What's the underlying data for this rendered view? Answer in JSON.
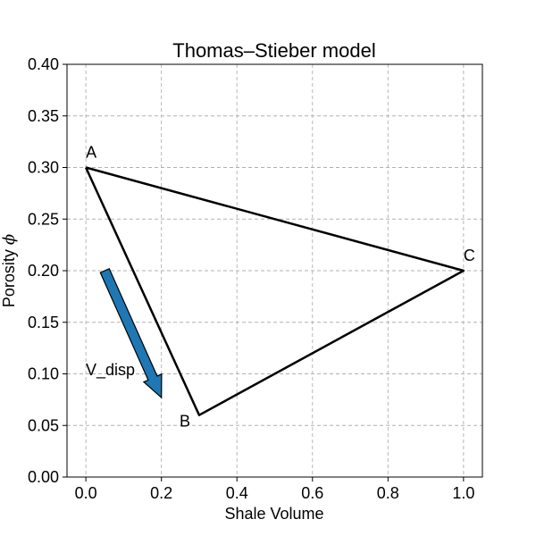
{
  "chart_data": {
    "type": "line",
    "title": "Thomas–Stieber model",
    "xlabel": "Shale Volume",
    "ylabel_text": "Porosity ",
    "ylabel_symbol": "ϕ",
    "xlim": [
      -0.05,
      1.05
    ],
    "ylim": [
      0.0,
      0.4
    ],
    "xticks": [
      0.0,
      0.2,
      0.4,
      0.6,
      0.8,
      1.0
    ],
    "xtick_labels": [
      "0.0",
      "0.2",
      "0.4",
      "0.6",
      "0.8",
      "1.0"
    ],
    "yticks": [
      0.0,
      0.05,
      0.1,
      0.15,
      0.2,
      0.25,
      0.3,
      0.35,
      0.4
    ],
    "ytick_labels": [
      "0.00",
      "0.05",
      "0.10",
      "0.15",
      "0.20",
      "0.25",
      "0.30",
      "0.35",
      "0.40"
    ],
    "grid": true,
    "points": [
      {
        "label": "A",
        "x": 0.0,
        "y": 0.3
      },
      {
        "label": "B",
        "x": 0.3,
        "y": 0.06
      },
      {
        "label": "C",
        "x": 1.0,
        "y": 0.2
      }
    ],
    "triangle_order": [
      "A",
      "C",
      "B",
      "A"
    ],
    "arrow": {
      "label": "V_disp",
      "start": [
        0.05,
        0.2
      ],
      "end": [
        0.2,
        0.077
      ],
      "color": "#1f77b4"
    }
  }
}
